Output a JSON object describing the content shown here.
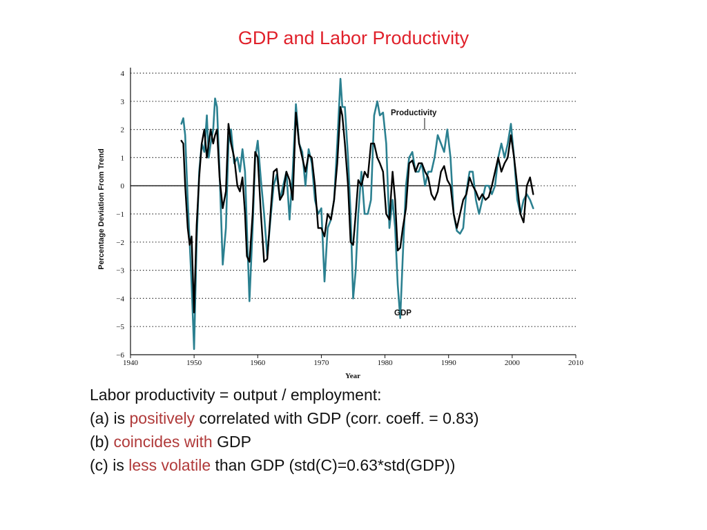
{
  "title": "GDP and Labor Productivity",
  "colors": {
    "title": "#e0202a",
    "productivity": "#2b8090",
    "gdp": "#000000",
    "highlight": "#b03a3a"
  },
  "chart_data": {
    "type": "line",
    "xlabel": "Year",
    "ylabel": "Percentage Deviation From Trend",
    "xlim": [
      1940,
      2010
    ],
    "ylim": [
      -6,
      4
    ],
    "xticks": [
      "1940",
      "1950",
      "1960",
      "1970",
      "1980",
      "1990",
      "2000",
      "2010"
    ],
    "yticks": [
      "4",
      "3",
      "2",
      "1",
      "0",
      "−1",
      "−2",
      "−3",
      "−4",
      "−5",
      "−6"
    ],
    "grid": "horizontal dotted",
    "annotations": [
      {
        "text": "Productivity",
        "series": "productivity"
      },
      {
        "text": "GDP",
        "series": "gdp"
      }
    ],
    "series": [
      {
        "name": "Productivity",
        "x": [
          1948.0,
          1948.3,
          1948.6,
          1949.0,
          1949.3,
          1949.6,
          1950.0,
          1950.4,
          1950.8,
          1951.2,
          1951.6,
          1952.0,
          1952.3,
          1952.6,
          1953.0,
          1953.3,
          1953.6,
          1954.0,
          1954.5,
          1955.0,
          1955.4,
          1955.8,
          1956.3,
          1956.8,
          1957.2,
          1957.6,
          1958.0,
          1958.3,
          1958.7,
          1959.2,
          1959.6,
          1960.0,
          1960.5,
          1961.0,
          1961.5,
          1962.0,
          1962.5,
          1963.0,
          1963.5,
          1964.0,
          1964.5,
          1965.0,
          1965.5,
          1966.0,
          1966.5,
          1967.0,
          1967.5,
          1968.0,
          1968.5,
          1969.0,
          1969.5,
          1970.0,
          1970.5,
          1971.0,
          1971.5,
          1972.0,
          1972.5,
          1973.0,
          1973.3,
          1973.7,
          1974.2,
          1974.6,
          1975.0,
          1975.4,
          1975.8,
          1976.3,
          1976.8,
          1977.3,
          1977.8,
          1978.3,
          1978.8,
          1979.2,
          1979.7,
          1980.2,
          1980.7,
          1981.2,
          1981.6,
          1982.0,
          1982.4,
          1982.8,
          1983.3,
          1983.8,
          1984.3,
          1984.8,
          1985.3,
          1985.8,
          1986.3,
          1986.8,
          1987.3,
          1987.8,
          1988.3,
          1988.8,
          1989.3,
          1989.8,
          1990.3,
          1990.8,
          1991.3,
          1991.8,
          1992.3,
          1992.8,
          1993.3,
          1993.8,
          1994.3,
          1994.8,
          1995.3,
          1995.8,
          1996.3,
          1996.8,
          1997.3,
          1997.8,
          1998.3,
          1998.8,
          1999.3,
          1999.8,
          2000.3,
          2000.8,
          2001.3,
          2001.8,
          2002.3,
          2002.8,
          2003.3
        ],
        "values": [
          2.2,
          2.4,
          1.8,
          -0.5,
          -2.0,
          -3.5,
          -5.8,
          -2.0,
          0.5,
          1.5,
          1.2,
          2.5,
          1.0,
          1.5,
          2.0,
          3.1,
          2.8,
          0.5,
          -2.8,
          -1.5,
          1.5,
          2.0,
          0.8,
          1.0,
          0.5,
          1.3,
          0.5,
          -1.5,
          -4.1,
          -1.5,
          1.0,
          1.6,
          0.2,
          -1.0,
          -2.5,
          -1.2,
          0.0,
          0.4,
          -0.5,
          0.0,
          0.5,
          -1.2,
          0.5,
          2.9,
          1.5,
          1.2,
          0.0,
          1.3,
          0.8,
          -0.5,
          -1.0,
          -0.8,
          -3.4,
          -1.5,
          -1.2,
          -0.5,
          1.5,
          3.8,
          2.8,
          2.8,
          1.0,
          -1.0,
          -4.0,
          -3.0,
          -1.0,
          0.5,
          -1.0,
          -1.0,
          -0.5,
          2.5,
          3.0,
          2.5,
          2.6,
          1.5,
          -1.5,
          -0.5,
          -1.5,
          -3.5,
          -4.7,
          -2.5,
          0.0,
          1.0,
          1.2,
          0.5,
          0.5,
          0.8,
          0.0,
          0.5,
          0.5,
          1.0,
          1.8,
          1.5,
          1.2,
          2.0,
          1.0,
          -1.0,
          -1.6,
          -1.7,
          -1.5,
          -0.2,
          0.5,
          0.5,
          -0.5,
          -1.0,
          -0.5,
          0.0,
          0.0,
          -0.3,
          0.0,
          1.0,
          1.5,
          1.0,
          1.5,
          2.2,
          1.0,
          -0.5,
          -1.0,
          -0.5,
          -0.3,
          -0.5,
          -0.8
        ]
      },
      {
        "name": "GDP",
        "x": [
          1948.0,
          1948.3,
          1948.6,
          1949.0,
          1949.3,
          1949.6,
          1950.0,
          1950.4,
          1950.8,
          1951.2,
          1951.6,
          1952.0,
          1952.3,
          1952.6,
          1953.0,
          1953.3,
          1953.6,
          1954.0,
          1954.5,
          1955.0,
          1955.4,
          1955.8,
          1956.3,
          1956.8,
          1957.2,
          1957.6,
          1958.0,
          1958.3,
          1958.7,
          1959.2,
          1959.6,
          1960.0,
          1960.5,
          1961.0,
          1961.5,
          1962.0,
          1962.5,
          1963.0,
          1963.5,
          1964.0,
          1964.5,
          1965.0,
          1965.5,
          1966.0,
          1966.5,
          1967.0,
          1967.5,
          1968.0,
          1968.5,
          1969.0,
          1969.5,
          1970.0,
          1970.5,
          1971.0,
          1971.5,
          1972.0,
          1972.5,
          1973.0,
          1973.3,
          1973.7,
          1974.2,
          1974.6,
          1975.0,
          1975.4,
          1975.8,
          1976.3,
          1976.8,
          1977.3,
          1977.8,
          1978.3,
          1978.8,
          1979.2,
          1979.7,
          1980.2,
          1980.7,
          1981.2,
          1981.6,
          1982.0,
          1982.4,
          1982.8,
          1983.3,
          1983.8,
          1984.3,
          1984.8,
          1985.3,
          1985.8,
          1986.3,
          1986.8,
          1987.3,
          1987.8,
          1988.3,
          1988.8,
          1989.3,
          1989.8,
          1990.3,
          1990.8,
          1991.3,
          1991.8,
          1992.3,
          1992.8,
          1993.3,
          1993.8,
          1994.3,
          1994.8,
          1995.3,
          1995.8,
          1996.3,
          1996.8,
          1997.3,
          1997.8,
          1998.3,
          1998.8,
          1999.3,
          1999.8,
          2000.3,
          2000.8,
          2001.3,
          2001.8,
          2002.3,
          2002.8,
          2003.3
        ],
        "values": [
          1.6,
          1.5,
          0.0,
          -1.5,
          -2.1,
          -1.8,
          -4.5,
          -1.4,
          0.3,
          1.5,
          2.0,
          1.0,
          1.5,
          2.0,
          1.5,
          1.8,
          2.0,
          0.3,
          -0.8,
          -0.2,
          2.2,
          1.5,
          1.0,
          0.0,
          -0.2,
          0.3,
          -1.0,
          -2.5,
          -2.7,
          -1.0,
          1.2,
          1.0,
          -1.0,
          -2.7,
          -2.6,
          -1.0,
          0.5,
          0.6,
          -0.5,
          -0.3,
          0.5,
          0.2,
          -0.5,
          2.6,
          1.5,
          1.0,
          0.5,
          1.1,
          1.0,
          0.0,
          -1.5,
          -1.5,
          -1.8,
          -1.0,
          -1.2,
          -0.5,
          0.8,
          2.8,
          2.5,
          1.5,
          0.0,
          -2.0,
          -2.1,
          -1.0,
          0.2,
          0.0,
          0.5,
          0.3,
          1.5,
          1.5,
          1.0,
          0.8,
          0.5,
          -1.0,
          -1.2,
          0.5,
          -0.5,
          -2.3,
          -2.2,
          -1.5,
          -0.8,
          0.8,
          0.9,
          0.5,
          0.8,
          0.8,
          0.5,
          0.3,
          -0.3,
          -0.5,
          -0.2,
          0.5,
          0.7,
          0.2,
          0.0,
          -1.0,
          -1.5,
          -1.0,
          -0.5,
          -0.3,
          0.3,
          0.0,
          -0.2,
          -0.5,
          -0.3,
          -0.5,
          -0.4,
          0.0,
          0.5,
          1.0,
          0.5,
          0.8,
          1.0,
          1.8,
          1.0,
          0.0,
          -1.0,
          -1.3,
          0.0,
          0.3,
          -0.3
        ]
      }
    ]
  },
  "notes": {
    "line1": "Labor productivity = output / employment:",
    "line2": {
      "prefix": "(a) is ",
      "highlight": "positively",
      "suffix": " correlated with GDP (corr. coeff. = 0.83)"
    },
    "line3": {
      "prefix": "(b) ",
      "highlight": "coincides with",
      "suffix": " GDP"
    },
    "line4": {
      "prefix": "(c) is ",
      "highlight": "less volatile",
      "suffix": " than GDP (std(C)=0.63*std(GDP))"
    }
  }
}
